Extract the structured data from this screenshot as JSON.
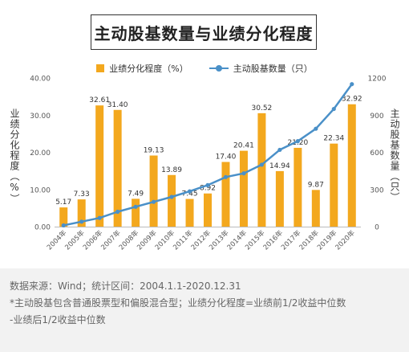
{
  "chart_data": {
    "type": "bar+line",
    "title": "主动股基数量与业绩分化程度",
    "categories": [
      "2004年",
      "2005年",
      "2006年",
      "2007年",
      "2008年",
      "2009年",
      "2010年",
      "2011年",
      "2012年",
      "2013年",
      "2014年",
      "2015年",
      "2016年",
      "2017年",
      "2018年",
      "2019年",
      "2020年"
    ],
    "series": [
      {
        "name": "业绩分化程度（%）",
        "type": "bar",
        "axis": "left",
        "color": "#f3a81e",
        "values": [
          5.17,
          7.33,
          32.61,
          31.4,
          7.49,
          19.13,
          13.89,
          7.45,
          8.92,
          17.4,
          20.41,
          30.52,
          14.94,
          21.2,
          9.87,
          22.34,
          32.92
        ],
        "labels": [
          "5.17",
          "7.33",
          "32.61",
          "31.40",
          "7.49",
          "19.13",
          "13.89",
          "7.45",
          "8.92",
          "17.40",
          "20.41",
          "30.52",
          "14.94",
          "21.20",
          "9.87",
          "22.34",
          "32.92"
        ]
      },
      {
        "name": "主动股基数量（只）",
        "type": "line",
        "axis": "right",
        "color": "#4a90c8",
        "values": [
          10,
          40,
          70,
          120,
          160,
          200,
          240,
          285,
          335,
          400,
          430,
          500,
          620,
          690,
          790,
          950,
          1150
        ]
      }
    ],
    "y_left": {
      "label": "业绩分化程度（%）",
      "min": 0,
      "max": 40,
      "ticks": [
        "0.00",
        "10.00",
        "20.00",
        "30.00",
        "40.00"
      ]
    },
    "y_right": {
      "label": "主动股基数量（只）",
      "min": 0,
      "max": 1200,
      "ticks": [
        "0",
        "300",
        "600",
        "900",
        "1200"
      ]
    },
    "legend_position": "top-center",
    "grid": false
  },
  "notes": {
    "source": "数据来源：Wind；统计区间：2004.1.1-2020.12.31",
    "footnote_line1": "*主动股基包含普通股票型和偏股混合型；业绩分化程度=业绩前1/2收益中位数",
    "footnote_line2": "-业绩后1/2收益中位数"
  }
}
